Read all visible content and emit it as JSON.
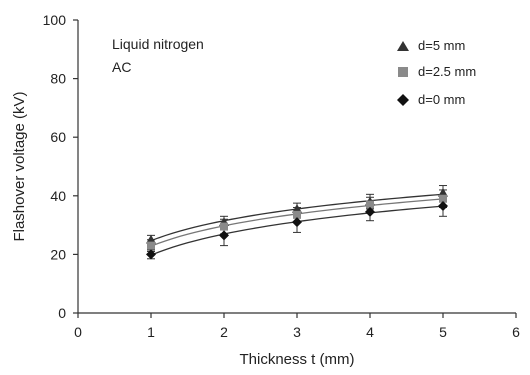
{
  "chart_data": {
    "type": "scatter",
    "annotations": [
      "Liquid nitrogen",
      "AC"
    ],
    "xlabel": "Thickness t (mm)",
    "ylabel": "Flashover voltage (kV)",
    "xlim": [
      0,
      6
    ],
    "ylim": [
      0,
      100
    ],
    "xticks": [
      "0",
      "1",
      "2",
      "3",
      "4",
      "5",
      "6"
    ],
    "yticks": [
      "0",
      "20",
      "40",
      "60",
      "80",
      "100"
    ],
    "grid": false,
    "legend_position": "top-right",
    "x": [
      1,
      2,
      3,
      4,
      5
    ],
    "series": [
      {
        "name": "d=5 mm",
        "marker": "triangle",
        "color": "#333333",
        "values": [
          25,
          31,
          35.5,
          38,
          41
        ],
        "error": [
          1.5,
          2,
          2,
          2.5,
          2.5
        ]
      },
      {
        "name": "d=2.5 mm",
        "marker": "square",
        "color": "#8a8a8a",
        "values": [
          23,
          29.5,
          33.5,
          37,
          39
        ],
        "error": [
          2,
          2.5,
          2.5,
          2.5,
          3
        ]
      },
      {
        "name": "d=0 mm",
        "marker": "diamond",
        "color": "#111111",
        "values": [
          20,
          26.5,
          31,
          34.5,
          36.5
        ],
        "error": [
          1.5,
          3.5,
          3.5,
          3,
          3.5
        ]
      }
    ]
  }
}
